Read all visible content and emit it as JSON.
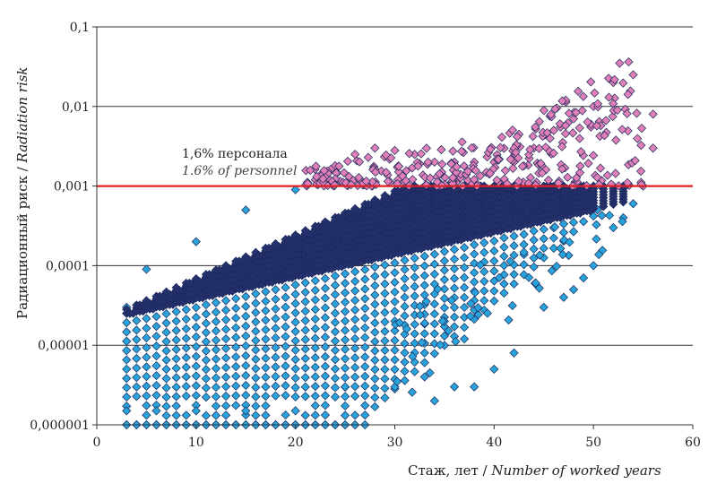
{
  "chart_data": {
    "type": "scatter",
    "xlabel_ru": "Стаж, лет / ",
    "xlabel_en": "Number of worked years",
    "ylabel_ru": "Радиационный риск / ",
    "ylabel_en": "Radiation risk",
    "xlim": [
      0,
      60
    ],
    "ylim": [
      1e-06,
      0.1
    ],
    "yscale": "log",
    "x_ticks": [
      "0",
      "10",
      "20",
      "30",
      "40",
      "50",
      "60"
    ],
    "y_ticks": [
      "0,000001",
      "0,00001",
      "0,0001",
      "0,001",
      "0,01",
      "0,1"
    ],
    "y_tick_values": [
      1e-06,
      1e-05,
      0.0001,
      0.001,
      0.01,
      0.1
    ],
    "threshold": {
      "value": 0.001,
      "color": "#e02020"
    },
    "annotation_ru": "1,6% персонала",
    "annotation_en": "1.6% of personnel",
    "series": [
      {
        "color": "#29a3dc",
        "dense_color": "#26316f",
        "values_above_threshold_color": "#e07fb8",
        "points": [
          [
            3,
            1e-06
          ],
          [
            4,
            1e-06
          ],
          [
            5,
            1e-06
          ],
          [
            6,
            1e-06
          ],
          [
            7,
            1e-06
          ],
          [
            8,
            1e-06
          ],
          [
            9,
            1e-06
          ],
          [
            10,
            1e-06
          ],
          [
            11,
            1e-06
          ],
          [
            12,
            1e-06
          ],
          [
            13,
            1e-06
          ],
          [
            14,
            1e-06
          ],
          [
            15,
            1e-06
          ],
          [
            16,
            1e-06
          ],
          [
            17,
            1e-06
          ],
          [
            18,
            1e-06
          ],
          [
            19,
            1e-06
          ],
          [
            20,
            1e-06
          ],
          [
            21,
            1e-06
          ],
          [
            22,
            1e-06
          ],
          [
            23,
            1e-06
          ],
          [
            24,
            1e-06
          ],
          [
            25,
            1e-06
          ],
          [
            26,
            1e-06
          ],
          [
            3,
            1.5e-06
          ],
          [
            6,
            1.5e-06
          ],
          [
            10,
            1.5e-06
          ],
          [
            15,
            1.5e-06
          ],
          [
            20,
            1.5e-06
          ],
          [
            25,
            3e-06
          ],
          [
            30,
            3e-06
          ],
          [
            34,
            2e-06
          ],
          [
            36,
            3e-06
          ],
          [
            38,
            3e-06
          ],
          [
            40,
            5e-06
          ],
          [
            42,
            8e-06
          ],
          [
            33,
            4e-06
          ],
          [
            35,
            2e-05
          ],
          [
            37,
            1.2e-05
          ],
          [
            45,
            3e-05
          ],
          [
            47,
            4e-05
          ],
          [
            48,
            5e-05
          ],
          [
            49,
            7e-05
          ],
          [
            50,
            0.0001
          ],
          [
            52,
            0.0003
          ],
          [
            53,
            0.0004
          ],
          [
            54,
            0.0006
          ],
          [
            55,
            0.001
          ],
          [
            56,
            0.003
          ],
          [
            56,
            0.008
          ],
          [
            54,
            0.025
          ],
          [
            52,
            0.02
          ],
          [
            50,
            0.01
          ],
          [
            48,
            0.007
          ],
          [
            46,
            0.005
          ],
          [
            44,
            0.003
          ],
          [
            42,
            0.002
          ],
          [
            40,
            0.002
          ],
          [
            38,
            0.002
          ],
          [
            36,
            0.002
          ],
          [
            34,
            0.002
          ],
          [
            32,
            0.0025
          ],
          [
            30,
            0.0028
          ],
          [
            28,
            0.003
          ],
          [
            26,
            0.0025
          ],
          [
            24,
            0.0018
          ],
          [
            22,
            0.0012
          ],
          [
            20,
            0.0009
          ],
          [
            15,
            0.0005
          ],
          [
            10,
            0.0002
          ],
          [
            5,
            9e-05
          ],
          [
            3,
            3e-05
          ]
        ]
      }
    ],
    "grid": "horizontal"
  }
}
